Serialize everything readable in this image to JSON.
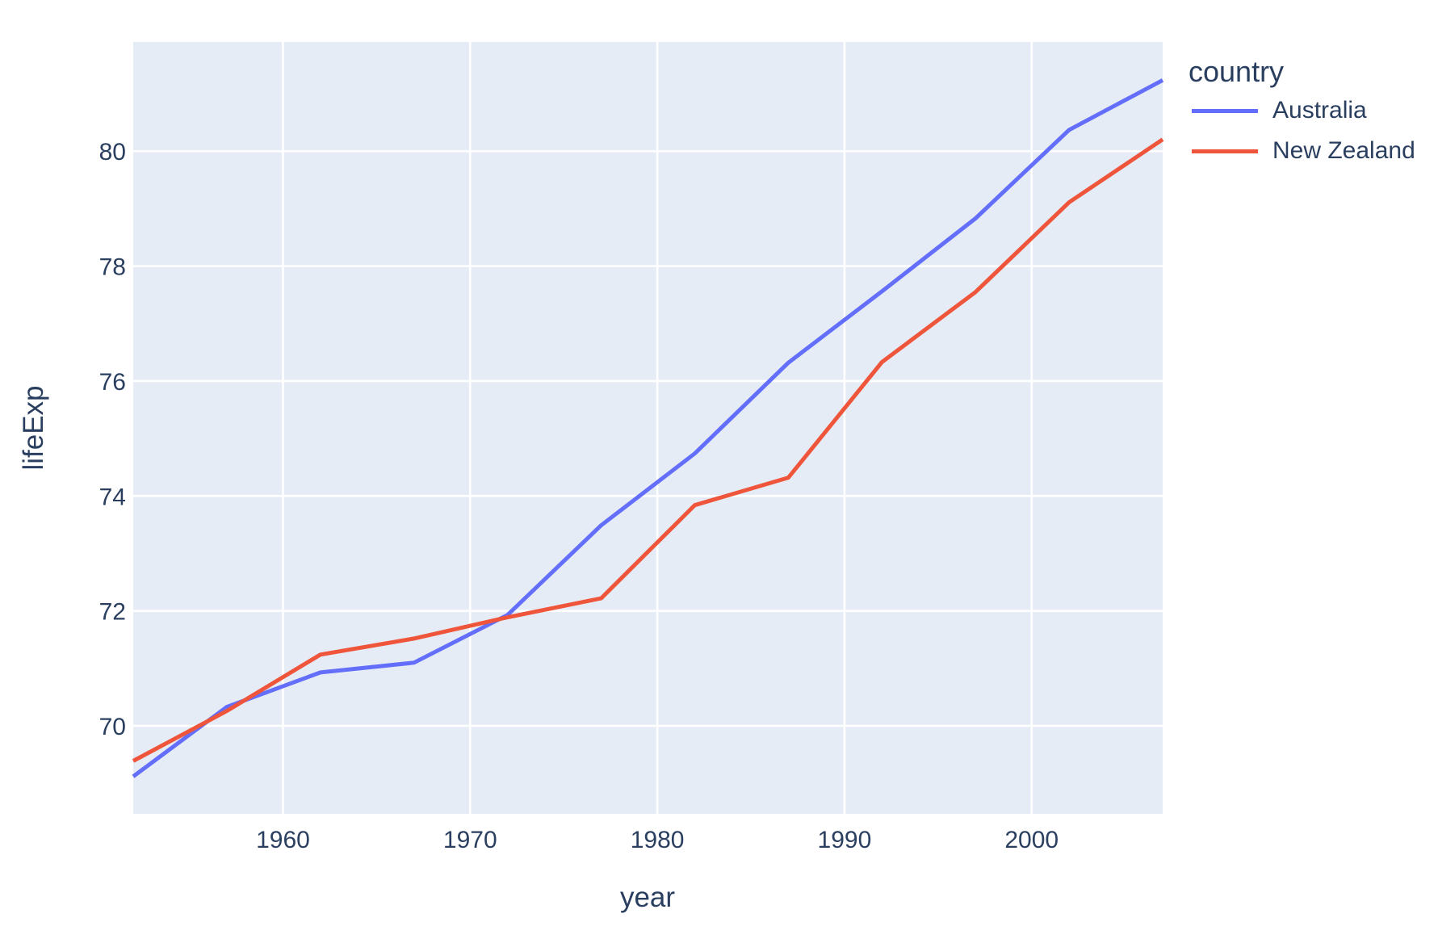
{
  "chart_data": {
    "type": "line",
    "title": "",
    "xlabel": "year",
    "ylabel": "lifeExp",
    "legend_title": "country",
    "legend_position": "right-top-outside",
    "grid": true,
    "x": [
      1952,
      1957,
      1962,
      1967,
      1972,
      1977,
      1982,
      1987,
      1992,
      1997,
      2002,
      2007
    ],
    "series": [
      {
        "name": "Australia",
        "color": "#636EFA",
        "values": [
          69.12,
          70.33,
          70.93,
          71.1,
          71.93,
          73.49,
          74.74,
          76.32,
          77.56,
          78.83,
          80.37,
          81.235
        ]
      },
      {
        "name": "New Zealand",
        "color": "#EF553B",
        "values": [
          69.39,
          70.26,
          71.24,
          71.52,
          71.89,
          72.22,
          73.84,
          74.32,
          76.33,
          77.55,
          79.11,
          80.204
        ]
      }
    ],
    "xlim": [
      1952,
      2007
    ],
    "ylim": [
      68.47,
      81.9
    ],
    "xticks": [
      1960,
      1970,
      1980,
      1990,
      2000
    ],
    "yticks": [
      70,
      72,
      74,
      76,
      78,
      80
    ],
    "plot_bgcolor": "#E5ECF6",
    "paper_bgcolor": "#FFFFFF",
    "grid_color": "#FFFFFF",
    "text_color": "#2A3F5F",
    "line_width": 5,
    "tick_font_size": 30
  }
}
